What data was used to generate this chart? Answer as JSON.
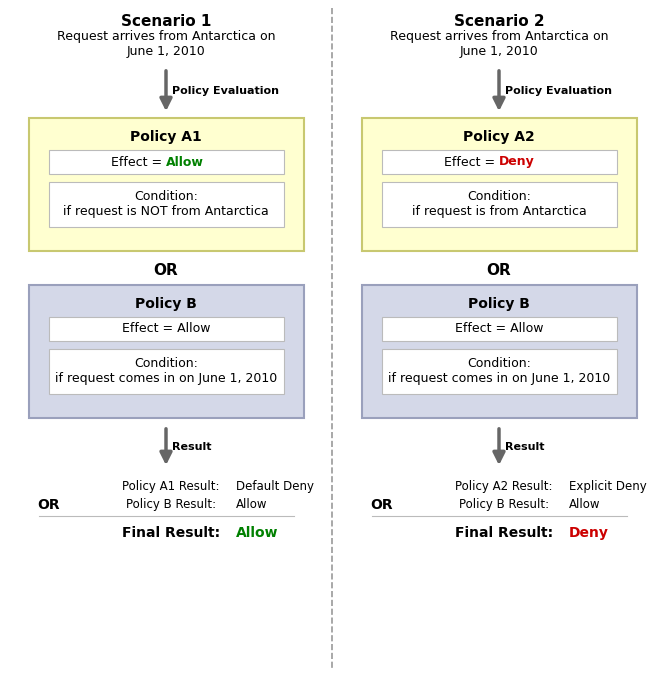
{
  "title_s1": "Scenario 1",
  "title_s2": "Scenario 2",
  "request_text": "Request arrives from Antarctica on\nJune 1, 2010",
  "policy_eval_label": "Policy Evaluation",
  "result_label": "Result",
  "or_label": "OR",
  "s1_policy_a_title": "Policy A1",
  "s1_policy_a_effect_pre": "Effect = ",
  "s1_policy_a_effect_word": "Allow",
  "s1_policy_a_effect_color": "#008000",
  "s1_policy_a_condition": "Condition:\nif request is NOT from Antarctica",
  "s1_policy_a_bg": "#FFFFD0",
  "s1_policy_a_border": "#C8C870",
  "s1_policy_b_title": "Policy B",
  "s1_policy_b_effect": "Effect = Allow",
  "s1_policy_b_condition": "Condition:\nif request comes in on June 1, 2010",
  "s1_policy_b_bg": "#D4D8E8",
  "s1_policy_b_border": "#9AA0BC",
  "s1_result1_label": "Policy A1 Result:",
  "s1_result1_value": "Default Deny",
  "s1_result2_label": "Policy B Result:",
  "s1_result2_value": "Allow",
  "s1_final_label": "Final Result:",
  "s1_final_value": "Allow",
  "s1_final_color": "#008000",
  "s2_policy_a_title": "Policy A2",
  "s2_policy_a_effect_pre": "Effect = ",
  "s2_policy_a_effect_word": "Deny",
  "s2_policy_a_effect_color": "#CC0000",
  "s2_policy_a_condition": "Condition:\nif request is from Antarctica",
  "s2_policy_a_bg": "#FFFFD0",
  "s2_policy_a_border": "#C8C870",
  "s2_policy_b_title": "Policy B",
  "s2_policy_b_effect": "Effect = Allow",
  "s2_policy_b_condition": "Condition:\nif request comes in on June 1, 2010",
  "s2_policy_b_bg": "#D4D8E8",
  "s2_policy_b_border": "#9AA0BC",
  "s2_result1_label": "Policy A2 Result:",
  "s2_result1_value": "Explicit Deny",
  "s2_result2_label": "Policy B Result:",
  "s2_result2_value": "Allow",
  "s2_final_label": "Final Result:",
  "s2_final_value": "Deny",
  "s2_final_color": "#CC0000",
  "bg_color": "#FFFFFF",
  "divider_color": "#999999",
  "arrow_color": "#666666",
  "text_color": "#000000",
  "box_white_bg": "#FFFFFF",
  "box_white_border": "#BBBBBB",
  "line_color": "#BBBBBB"
}
